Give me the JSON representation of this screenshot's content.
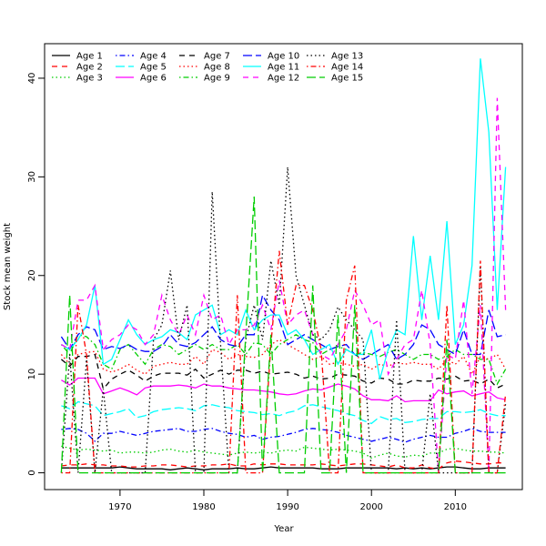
{
  "chart_data": {
    "type": "line",
    "title": "",
    "xlabel": "Year",
    "ylabel": "Stock mean weight",
    "xlim": [
      1961,
      2018
    ],
    "ylim": [
      -1.7,
      43.5
    ],
    "xticks": [
      1970,
      1980,
      1990,
      2000,
      2010
    ],
    "yticks": [
      0,
      10,
      20,
      30,
      40
    ],
    "grid": false,
    "legend_position": "top-left",
    "x": [
      1963,
      1964,
      1965,
      1966,
      1967,
      1968,
      1969,
      1970,
      1971,
      1972,
      1973,
      1974,
      1975,
      1976,
      1977,
      1978,
      1979,
      1980,
      1981,
      1982,
      1983,
      1984,
      1985,
      1986,
      1987,
      1988,
      1989,
      1990,
      1991,
      1992,
      1993,
      1994,
      1995,
      1996,
      1997,
      1998,
      1999,
      2000,
      2001,
      2002,
      2003,
      2004,
      2005,
      2006,
      2007,
      2008,
      2009,
      2010,
      2011,
      2012,
      2013,
      2014,
      2015,
      2016
    ],
    "series": [
      {
        "name": "Age 1",
        "color": "#000000",
        "line_style": "solid",
        "values": [
          0.5,
          0.5,
          0.5,
          0.5,
          0.5,
          0.5,
          0.5,
          0.6,
          0.5,
          0.4,
          0.4,
          0.4,
          0.4,
          0.3,
          0.4,
          0.5,
          0.4,
          0.3,
          0.4,
          0.4,
          0.4,
          0.5,
          0.4,
          0.4,
          0.5,
          0.6,
          0.5,
          0.5,
          0.5,
          0.5,
          0.5,
          0.4,
          0.4,
          0.4,
          0.5,
          0.5,
          0.5,
          0.5,
          0.5,
          0.5,
          0.4,
          0.5,
          0.4,
          0.5,
          0.4,
          0.5,
          0.6,
          0.6,
          0.5,
          0.4,
          0.4,
          0.5,
          0.5,
          0.5
        ]
      },
      {
        "name": "Age 2",
        "color": "#ff0000",
        "line_style": "dashed",
        "values": [
          0.7,
          0.8,
          0.8,
          0.9,
          0.8,
          0.8,
          0.7,
          0.7,
          0.6,
          0.6,
          0.7,
          0.7,
          0.8,
          0.8,
          0.7,
          0.6,
          0.7,
          0.7,
          0.8,
          0.8,
          0.9,
          0.7,
          0.7,
          0.9,
          0.8,
          0.9,
          0.9,
          0.8,
          0.8,
          0.8,
          0.8,
          0.9,
          0.8,
          0.7,
          0.8,
          0.9,
          0.9,
          0.8,
          0.7,
          0.6,
          0.8,
          0.5,
          0.5,
          0.8,
          0.5,
          0.4,
          1.0,
          1.2,
          1.1,
          1.0,
          0.9,
          0.9,
          1.0,
          1.0
        ]
      },
      {
        "name": "Age 3",
        "color": "#00cd00",
        "line_style": "dotted",
        "values": [
          2.7,
          2.5,
          2.3,
          2.4,
          2.3,
          2.2,
          2.3,
          2.0,
          2.1,
          2.1,
          2.0,
          2.1,
          2.3,
          2.4,
          2.2,
          2.1,
          2.3,
          2.1,
          2.0,
          1.9,
          1.8,
          2.0,
          2.1,
          2.0,
          2.1,
          2.0,
          2.2,
          2.3,
          2.2,
          2.6,
          2.5,
          2.4,
          2.3,
          2.4,
          2.3,
          2.2,
          2.0,
          1.5,
          1.8,
          2.0,
          1.7,
          1.6,
          1.8,
          1.7,
          2.0,
          2.0,
          2.4,
          2.5,
          2.3,
          2.2,
          2.2,
          2.1,
          2.1,
          2.0
        ]
      },
      {
        "name": "Age 4",
        "color": "#0000ff",
        "line_style": "dotdash",
        "values": [
          4.4,
          4.5,
          4.4,
          4.0,
          3.2,
          4.0,
          4.0,
          4.2,
          4.0,
          3.8,
          4.0,
          4.2,
          4.3,
          4.4,
          4.5,
          4.2,
          4.2,
          4.4,
          4.5,
          4.2,
          4.0,
          3.9,
          3.6,
          3.8,
          3.4,
          3.6,
          3.7,
          3.9,
          4.1,
          4.4,
          4.5,
          4.4,
          4.3,
          4.1,
          3.8,
          3.6,
          3.4,
          3.2,
          3.4,
          3.6,
          3.4,
          3.1,
          3.4,
          3.6,
          3.8,
          3.6,
          3.6,
          4.0,
          4.2,
          4.5,
          4.2,
          4.1,
          4.1,
          4.1
        ]
      },
      {
        "name": "Age 5",
        "color": "#00ffff",
        "line_style": "longdash",
        "values": [
          6.8,
          6.5,
          7.2,
          7.0,
          6.8,
          5.8,
          6.0,
          6.2,
          6.5,
          5.6,
          5.8,
          6.2,
          6.4,
          6.5,
          6.6,
          6.5,
          6.3,
          6.8,
          6.9,
          6.7,
          6.6,
          6.3,
          6.2,
          6.1,
          5.9,
          6.0,
          5.8,
          6.1,
          6.3,
          6.8,
          6.9,
          6.7,
          6.5,
          6.3,
          6.0,
          5.8,
          5.3,
          5.0,
          5.7,
          5.4,
          5.5,
          5.1,
          5.2,
          5.4,
          5.5,
          5.5,
          6.2,
          6.2,
          6.1,
          6.2,
          6.4,
          6.0,
          5.8,
          5.8
        ]
      },
      {
        "name": "Age 6",
        "color": "#ff00ff",
        "line_style": "solid",
        "values": [
          9.4,
          8.9,
          9.6,
          9.6,
          9.6,
          8.0,
          8.3,
          8.6,
          8.3,
          7.9,
          8.6,
          8.8,
          8.8,
          8.8,
          8.9,
          8.8,
          8.6,
          9.0,
          8.8,
          8.8,
          8.6,
          8.5,
          8.4,
          8.4,
          8.3,
          8.2,
          8.0,
          7.9,
          8.0,
          8.3,
          8.5,
          8.4,
          8.7,
          9.0,
          8.8,
          8.5,
          7.8,
          7.4,
          7.4,
          7.3,
          7.8,
          7.2,
          7.3,
          7.3,
          7.3,
          8.4,
          8.0,
          8.2,
          8.3,
          7.8,
          8.0,
          8.2,
          7.6,
          7.4
        ]
      },
      {
        "name": "Age 7",
        "color": "#000000",
        "line_style": "dashed",
        "values": [
          11.5,
          10.8,
          11.8,
          11.8,
          12.0,
          8.5,
          9.5,
          10.0,
          10.4,
          9.9,
          9.3,
          9.8,
          10.1,
          10.1,
          10.1,
          9.9,
          10.5,
          9.6,
          10.0,
          10.4,
          10.0,
          10.4,
          10.4,
          10.1,
          10.3,
          10.0,
          10.1,
          10.2,
          10.0,
          9.6,
          9.8,
          9.5,
          9.6,
          10.0,
          9.9,
          9.8,
          9.3,
          9.1,
          9.6,
          9.5,
          9.0,
          9.0,
          9.4,
          9.3,
          9.3,
          9.6,
          9.5,
          9.8,
          9.3,
          9.4,
          9.0,
          9.5,
          8.6,
          9.0
        ]
      },
      {
        "name": "Age 8",
        "color": "#ff0000",
        "line_style": "dotted",
        "values": [
          12.0,
          11.0,
          12.0,
          12.2,
          12.3,
          10.5,
          10.2,
          10.5,
          11.0,
          10.4,
          10.0,
          10.8,
          11.0,
          11.2,
          11.0,
          11.0,
          11.8,
          11.0,
          12.5,
          12.2,
          11.5,
          12.0,
          11.8,
          11.7,
          12.0,
          13.0,
          13.5,
          13.0,
          12.5,
          12.0,
          11.5,
          11.8,
          11.0,
          11.2,
          11.0,
          10.8,
          11.0,
          10.5,
          11.0,
          10.8,
          11.2,
          11.0,
          11.2,
          11.0,
          11.0,
          10.5,
          11.5,
          11.0,
          11.8,
          10.0,
          11.8,
          11.5,
          12.0,
          10.5
        ]
      },
      {
        "name": "Age 9",
        "color": "#00cd00",
        "line_style": "dotdash",
        "values": [
          13.0,
          12.0,
          14.0,
          13.8,
          13.0,
          11.0,
          10.5,
          12.5,
          13.0,
          12.0,
          11.0,
          12.5,
          13.0,
          12.8,
          12.0,
          12.5,
          13.0,
          12.5,
          13.0,
          12.5,
          12.5,
          13.0,
          12.0,
          13.2,
          13.0,
          12.0,
          13.0,
          13.5,
          14.0,
          13.5,
          13.2,
          12.0,
          12.5,
          12.8,
          12.5,
          12.0,
          12.2,
          12.0,
          11.8,
          12.2,
          12.5,
          12.0,
          11.5,
          12.0,
          12.0,
          11.5,
          11.8,
          12.5,
          12.0,
          12.0,
          11.5,
          11.5,
          9.0,
          10.5
        ]
      },
      {
        "name": "Age 10",
        "color": "#0000ff",
        "line_style": "longdash",
        "values": [
          13.8,
          12.5,
          14.0,
          14.8,
          14.5,
          12.5,
          12.8,
          12.6,
          13.0,
          12.5,
          12.3,
          12.3,
          12.8,
          14.0,
          13.0,
          12.8,
          13.2,
          14.0,
          14.8,
          13.5,
          13.0,
          12.8,
          14.0,
          14.0,
          18.0,
          16.5,
          15.5,
          13.0,
          13.5,
          14.0,
          13.5,
          13.0,
          12.5,
          12.8,
          13.0,
          12.0,
          11.5,
          12.0,
          12.5,
          13.0,
          11.5,
          12.0,
          13.0,
          15.0,
          14.5,
          13.0,
          12.5,
          12.0,
          14.5,
          12.0,
          12.0,
          16.5,
          13.8,
          14.0
        ]
      },
      {
        "name": "Age 11",
        "color": "#00ffff",
        "line_style": "solid",
        "values": [
          13.0,
          12.5,
          13.5,
          15.0,
          19.0,
          11.0,
          11.5,
          13.5,
          15.5,
          14.0,
          13.0,
          13.5,
          13.8,
          14.5,
          14.2,
          13.5,
          16.0,
          16.5,
          17.0,
          14.0,
          14.5,
          14.0,
          16.5,
          14.5,
          15.5,
          16.0,
          16.0,
          14.0,
          14.5,
          13.5,
          12.0,
          12.5,
          13.0,
          11.0,
          12.5,
          12.0,
          12.0,
          14.5,
          9.5,
          12.5,
          14.5,
          14.0,
          24.0,
          15.5,
          22.0,
          15.5,
          25.5,
          13.0,
          15.0,
          21.0,
          42.0,
          34.5,
          16.5,
          31.0
        ]
      },
      {
        "name": "Age 12",
        "color": "#ff00ff",
        "line_style": "dashed",
        "values": [
          13.0,
          12.5,
          17.5,
          17.5,
          19.0,
          12.5,
          13.5,
          14.0,
          15.0,
          14.5,
          13.0,
          14.0,
          18.0,
          15.5,
          14.0,
          16.0,
          14.0,
          18.0,
          15.5,
          16.0,
          13.0,
          14.5,
          14.5,
          15.0,
          17.0,
          14.5,
          19.5,
          15.0,
          16.0,
          16.5,
          14.0,
          12.0,
          11.5,
          13.0,
          14.5,
          18.5,
          17.0,
          15.0,
          15.5,
          10.0,
          11.5,
          13.0,
          13.5,
          18.5,
          13.0,
          0.0,
          12.0,
          11.5,
          17.5,
          8.0,
          17.0,
          0.0,
          38.0,
          16.5
        ]
      },
      {
        "name": "Age 13",
        "color": "#000000",
        "line_style": "dotted",
        "values": [
          0,
          12.0,
          0,
          11.5,
          0,
          8.5,
          0,
          0,
          0,
          0,
          0,
          13.5,
          15.0,
          20.5,
          13.5,
          17.0,
          0,
          0,
          28.5,
          13.0,
          0,
          0,
          13.5,
          17.0,
          13.5,
          21.5,
          17.0,
          31.0,
          20.0,
          17.0,
          14.0,
          13.5,
          14.5,
          16.8,
          15.5,
          14.5,
          13.5,
          0,
          0,
          0,
          15.5,
          0,
          0,
          0,
          8.0,
          0,
          0,
          0,
          0,
          0,
          21.0,
          0,
          0,
          7.0
        ]
      },
      {
        "name": "Age 14",
        "color": "#ff0000",
        "line_style": "dotdash",
        "values": [
          0,
          0,
          17.0,
          12.0,
          0,
          0,
          0,
          0,
          0,
          0,
          0,
          0,
          0,
          0,
          0,
          0,
          0,
          0,
          0,
          0,
          0,
          18.0,
          0,
          0,
          0,
          13.0,
          22.5,
          15.0,
          19.0,
          19.0,
          16.5,
          12.5,
          0,
          0,
          17.5,
          21.0,
          0,
          0,
          0,
          0,
          0,
          0,
          0,
          0,
          0,
          0,
          17.0,
          0,
          0,
          0,
          21.5,
          0,
          0,
          8.0
        ]
      },
      {
        "name": "Age 15",
        "color": "#00cd00",
        "line_style": "longdash",
        "values": [
          0,
          18.0,
          0,
          0,
          0,
          0,
          0,
          0,
          0,
          0,
          0,
          0,
          0,
          0,
          0,
          0,
          0,
          0,
          0,
          0,
          0,
          0,
          14.0,
          28.0,
          0,
          14.0,
          0,
          0,
          0,
          0,
          19.0,
          0,
          0,
          16.0,
          0,
          17.0,
          0,
          0,
          0,
          0,
          0,
          0,
          0,
          0,
          0,
          0,
          13.5,
          0,
          0,
          0,
          0,
          0,
          0,
          0
        ]
      }
    ]
  }
}
